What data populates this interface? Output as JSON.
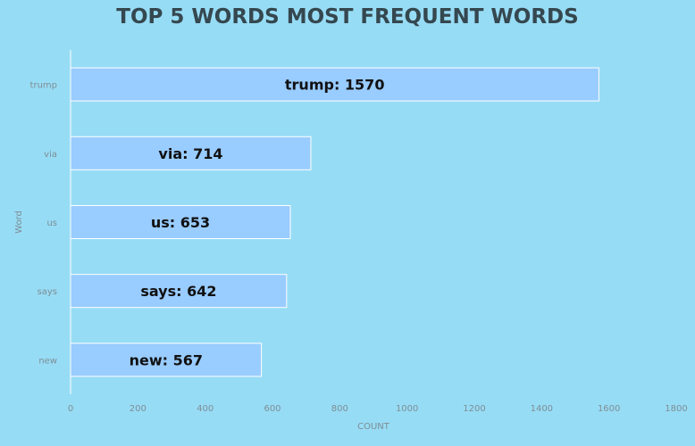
{
  "chart_data": {
    "type": "bar",
    "orientation": "horizontal",
    "title": "TOP 5 WORDS MOST FREQUENT WORDS",
    "xlabel": "COUNT",
    "ylabel": "Word",
    "categories": [
      "trump",
      "via",
      "us",
      "says",
      "new"
    ],
    "values": [
      1570,
      714,
      653,
      642,
      567
    ],
    "data_labels": [
      "trump: 1570",
      "via: 714",
      "us: 653",
      "says: 642",
      "new: 567"
    ],
    "xlim": [
      0,
      1800
    ],
    "xticks": [
      0,
      200,
      400,
      600,
      800,
      1000,
      1200,
      1400,
      1600,
      1800
    ],
    "grid": false,
    "bar_color": "#99ccff",
    "bar_edge_color": "#ffffff"
  }
}
